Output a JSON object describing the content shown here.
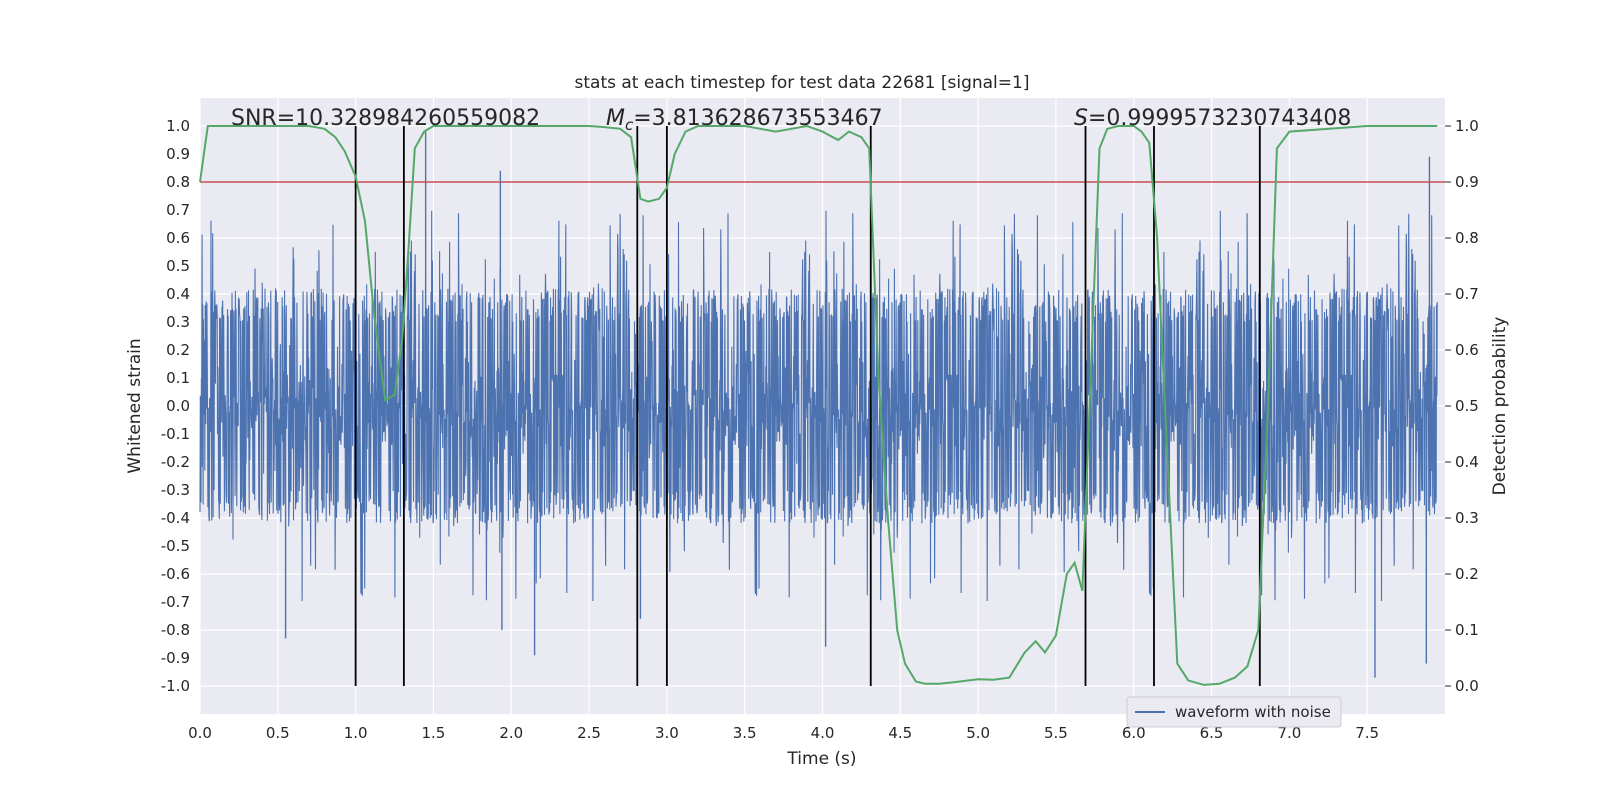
{
  "chart_data": {
    "type": "line",
    "title": "stats at each timestep for test data 22681 [signal=1]",
    "xlabel": "Time (s)",
    "ylabel": "Whitened strain",
    "ylabel_right": "Detection probability",
    "xlim": [
      0.0,
      8.0
    ],
    "ylim": [
      -1.1,
      1.1
    ],
    "ylim_right": [
      -0.05,
      1.05
    ],
    "grid": true,
    "legend_position": "bottom-right",
    "x_ticks": [
      "0.0",
      "0.5",
      "1.0",
      "1.5",
      "2.0",
      "2.5",
      "3.0",
      "3.5",
      "4.0",
      "4.5",
      "5.0",
      "5.5",
      "6.0",
      "6.5",
      "7.0",
      "7.5"
    ],
    "y_ticks": [
      "1.0",
      "0.9",
      "0.8",
      "0.7",
      "0.6",
      "0.5",
      "0.4",
      "0.3",
      "0.2",
      "0.1",
      "0.0",
      "-0.1",
      "-0.2",
      "-0.3",
      "-0.4",
      "-0.5",
      "-0.6",
      "-0.7",
      "-0.8",
      "-0.9",
      "-1.0"
    ],
    "y_ticks_right": [
      "1.0",
      "0.9",
      "0.8",
      "0.7",
      "0.6",
      "0.5",
      "0.4",
      "0.3",
      "0.2",
      "0.1",
      "0.0"
    ],
    "annotations": {
      "snr": "SNR=10.328984260559082",
      "mc_symbol": "M",
      "mc_sub": "c",
      "mc_value": "=3.813628673553467",
      "s_symbol": "S",
      "s_value": "=0.9999573230743408"
    },
    "threshold": {
      "value": 0.9,
      "axis": "right",
      "color": "#c44e52"
    },
    "vertical_lines": [
      1.0,
      1.31,
      2.81,
      3.0,
      4.31,
      5.69,
      6.13,
      6.81
    ],
    "series": [
      {
        "name": "waveform with noise",
        "color": "#4c72b0",
        "axis": "left",
        "style": "dense noise, approx ±0.35 core amplitude with spikes",
        "spikes": [
          {
            "x": 1.45,
            "y": 0.98
          },
          {
            "x": 1.93,
            "y": 0.84
          },
          {
            "x": 0.55,
            "y": -0.83
          },
          {
            "x": 1.94,
            "y": -0.8
          },
          {
            "x": 2.15,
            "y": -0.89
          },
          {
            "x": 4.02,
            "y": -0.86
          },
          {
            "x": 7.55,
            "y": -0.97
          },
          {
            "x": 7.9,
            "y": 0.89
          },
          {
            "x": 7.88,
            "y": -0.92
          },
          {
            "x": 2.83,
            "y": -0.76
          },
          {
            "x": 1.31,
            "y": -0.68
          }
        ]
      },
      {
        "name": "detection probability",
        "color": "#55a868",
        "axis": "right",
        "x": [
          0.0,
          0.05,
          0.1,
          0.3,
          0.5,
          0.7,
          0.8,
          0.87,
          0.93,
          1.0,
          1.06,
          1.12,
          1.19,
          1.25,
          1.3,
          1.34,
          1.38,
          1.44,
          1.5,
          1.6,
          2.0,
          2.5,
          2.6,
          2.7,
          2.77,
          2.83,
          2.88,
          2.95,
          3.0,
          3.05,
          3.12,
          3.2,
          3.3,
          3.5,
          3.7,
          3.8,
          3.9,
          4.0,
          4.1,
          4.17,
          4.25,
          4.3,
          4.36,
          4.42,
          4.48,
          4.53,
          4.6,
          4.66,
          4.75,
          4.85,
          5.0,
          5.1,
          5.2,
          5.3,
          5.37,
          5.43,
          5.5,
          5.57,
          5.62,
          5.67,
          5.73,
          5.78,
          5.83,
          5.9,
          6.0,
          6.05,
          6.1,
          6.15,
          6.2,
          6.28,
          6.35,
          6.45,
          6.55,
          6.65,
          6.73,
          6.8,
          6.86,
          6.92,
          7.0,
          7.5,
          7.95
        ],
        "y": [
          0.9,
          1.0,
          1.0,
          1.0,
          1.0,
          1.0,
          0.995,
          0.98,
          0.955,
          0.91,
          0.83,
          0.66,
          0.51,
          0.52,
          0.62,
          0.78,
          0.96,
          0.99,
          1.0,
          1.0,
          1.0,
          1.0,
          0.998,
          0.995,
          0.98,
          0.87,
          0.865,
          0.87,
          0.89,
          0.95,
          0.99,
          1.0,
          1.0,
          1.0,
          0.99,
          0.995,
          1.0,
          0.99,
          0.975,
          0.99,
          0.98,
          0.96,
          0.55,
          0.3,
          0.1,
          0.04,
          0.008,
          0.004,
          0.004,
          0.007,
          0.012,
          0.011,
          0.015,
          0.06,
          0.08,
          0.06,
          0.09,
          0.2,
          0.22,
          0.17,
          0.6,
          0.96,
          0.995,
          1.0,
          1.0,
          0.99,
          0.97,
          0.8,
          0.5,
          0.04,
          0.01,
          0.002,
          0.004,
          0.015,
          0.035,
          0.1,
          0.48,
          0.96,
          0.99,
          1.0,
          1.0
        ]
      }
    ]
  }
}
